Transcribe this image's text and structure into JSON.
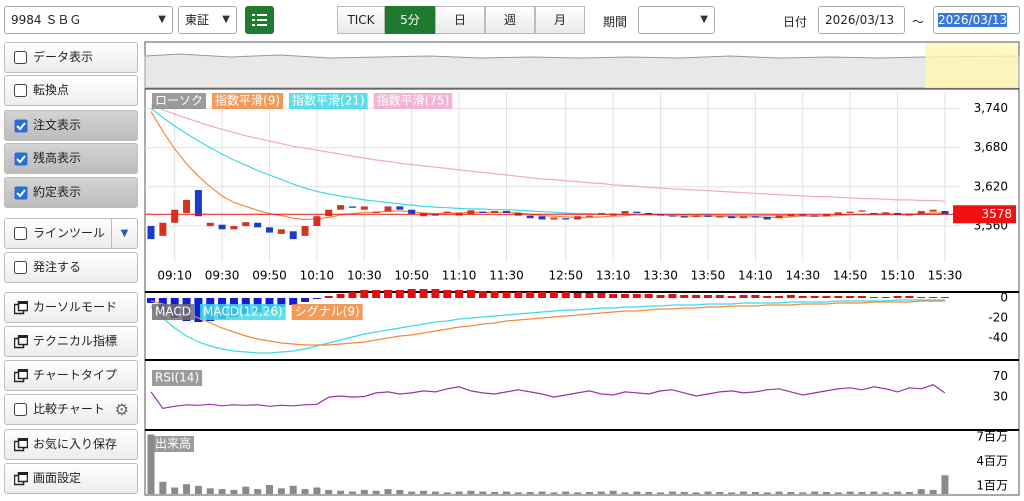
{
  "toolbar": {
    "symbol": "9984 ＳＢＧ",
    "market": "東証",
    "periods": [
      "TICK",
      "5分",
      "日",
      "週",
      "月"
    ],
    "active_period_index": 1,
    "period_label": "期間",
    "date_label": "日付",
    "date_from": "2026/03/13",
    "tilde": "～",
    "date_to": "2026/03/13"
  },
  "sidebar": {
    "items": [
      {
        "label": "データ表示",
        "checked": false
      },
      {
        "label": "転換点",
        "checked": false
      },
      {
        "label": "注文表示",
        "checked": true
      },
      {
        "label": "残高表示",
        "checked": true
      },
      {
        "label": "約定表示",
        "checked": true
      },
      {
        "label": "ラインツール",
        "checked": false
      },
      {
        "label": "発注する",
        "checked": false
      },
      {
        "label": "カーソルモード"
      },
      {
        "label": "テクニカル指標"
      },
      {
        "label": "チャートタイプ"
      },
      {
        "label": "比較チャート",
        "checked": false
      },
      {
        "label": "お気に入り保存"
      },
      {
        "label": "画面設定"
      }
    ]
  },
  "chart_data": [
    {
      "type": "candlestick",
      "categories": [
        null,
        null,
        "09:10",
        null,
        null,
        null,
        "09:30",
        null,
        null,
        null,
        "09:50",
        null,
        null,
        null,
        "10:10",
        null,
        null,
        null,
        "10:30",
        null,
        null,
        null,
        "10:50",
        null,
        null,
        null,
        "11:10",
        null,
        null,
        null,
        "11:30",
        null,
        null,
        null,
        null,
        "12:50",
        null,
        null,
        null,
        "13:10",
        null,
        null,
        null,
        "13:30",
        null,
        null,
        null,
        "13:50",
        null,
        null,
        null,
        "14:10",
        null,
        null,
        null,
        "14:30",
        null,
        null,
        null,
        "14:50",
        null,
        null,
        null,
        "15:10",
        null,
        null,
        null,
        "15:30"
      ],
      "candles": {
        "name": "ローソク",
        "up_color": "#d8321f",
        "down_color": "#1a3cc8",
        "open": [
          3560,
          3545,
          3565,
          3580,
          3615,
          3560,
          3562,
          3555,
          3560,
          3565,
          3558,
          3548,
          3552,
          3545,
          3560,
          3575,
          3585,
          3590,
          3585,
          3580,
          3582,
          3590,
          3585,
          3575,
          3578,
          3580,
          3576,
          3578,
          3582,
          3580,
          3583,
          3580,
          3576,
          3575,
          3570,
          3572,
          3570,
          3574,
          3578,
          3576,
          3579,
          3582,
          3580,
          3578,
          3576,
          3575,
          3574,
          3576,
          3573,
          3575,
          3572,
          3575,
          3574,
          3572,
          3575,
          3578,
          3576,
          3575,
          3577,
          3580,
          3582,
          3580,
          3578,
          3580,
          3576,
          3578,
          3582,
          3583
        ],
        "close": [
          3540,
          3565,
          3585,
          3600,
          3575,
          3565,
          3555,
          3560,
          3566,
          3558,
          3550,
          3555,
          3540,
          3560,
          3575,
          3585,
          3592,
          3588,
          3590,
          3582,
          3590,
          3585,
          3578,
          3580,
          3576,
          3582,
          3580,
          3584,
          3580,
          3583,
          3580,
          3576,
          3572,
          3570,
          3573,
          3570,
          3575,
          3576,
          3580,
          3579,
          3583,
          3580,
          3577,
          3576,
          3575,
          3573,
          3576,
          3574,
          3575,
          3572,
          3575,
          3573,
          3570,
          3576,
          3578,
          3576,
          3575,
          3578,
          3581,
          3582,
          3584,
          3579,
          3581,
          3577,
          3579,
          3583,
          3585,
          3578
        ]
      },
      "series": [
        {
          "name": "指数平滑(9)",
          "color": "#f08a3c",
          "values": [
            3735,
            3705,
            3678,
            3655,
            3636,
            3620,
            3606,
            3596,
            3590,
            3584,
            3579,
            3576,
            3572,
            3570,
            3571,
            3573,
            3577,
            3579,
            3581,
            3581,
            3583,
            3583,
            3582,
            3580,
            3579,
            3580,
            3580,
            3581,
            3581,
            3581,
            3581,
            3580,
            3578,
            3576,
            3575,
            3574,
            3573,
            3573,
            3574,
            3575,
            3576,
            3577,
            3577,
            3577,
            3576,
            3575,
            3575,
            3575,
            3575,
            3574,
            3574,
            3574,
            3573,
            3573,
            3574,
            3575,
            3575,
            3575,
            3576,
            3577,
            3578,
            3578,
            3579,
            3578,
            3578,
            3579,
            3580,
            3580
          ]
        },
        {
          "name": "指数平滑(21)",
          "color": "#3fd8e8",
          "values": [
            3740,
            3726,
            3713,
            3701,
            3690,
            3680,
            3670,
            3661,
            3653,
            3645,
            3638,
            3631,
            3624,
            3618,
            3613,
            3609,
            3606,
            3603,
            3600,
            3598,
            3596,
            3594,
            3592,
            3590,
            3589,
            3588,
            3587,
            3586,
            3586,
            3585,
            3585,
            3584,
            3583,
            3582,
            3581,
            3580,
            3579,
            3579,
            3578,
            3578,
            3578,
            3578,
            3578,
            3578,
            3577,
            3577,
            3577,
            3577,
            3576,
            3576,
            3576,
            3576,
            3576,
            3576,
            3576,
            3576,
            3576,
            3576,
            3576,
            3577,
            3577,
            3577,
            3577,
            3577,
            3577,
            3578,
            3578,
            3578
          ]
        },
        {
          "name": "指数平滑(75)",
          "color": "#f2a6cf",
          "values": [
            3745,
            3738,
            3731,
            3725,
            3719,
            3713,
            3708,
            3703,
            3698,
            3694,
            3690,
            3686,
            3682,
            3679,
            3676,
            3673,
            3670,
            3667,
            3664,
            3661,
            3659,
            3656,
            3654,
            3652,
            3650,
            3648,
            3646,
            3644,
            3642,
            3640,
            3638,
            3636,
            3634,
            3632,
            3631,
            3629,
            3628,
            3626,
            3625,
            3623,
            3622,
            3621,
            3619,
            3618,
            3617,
            3616,
            3615,
            3614,
            3613,
            3612,
            3611,
            3610,
            3609,
            3608,
            3607,
            3606,
            3605,
            3605,
            3604,
            3603,
            3602,
            3602,
            3601,
            3600,
            3600,
            3599,
            3599,
            3598
          ]
        }
      ],
      "last_price": 3578,
      "last_price_color": "#f01010",
      "ylim": [
        3505,
        3765
      ],
      "yticks": [
        {
          "value": 3560,
          "label": "3,560"
        },
        {
          "value": 3620,
          "label": "3,620"
        },
        {
          "value": 3680,
          "label": "3,680"
        },
        {
          "value": 3740,
          "label": "3,740"
        }
      ],
      "grid": true
    },
    {
      "type": "macd",
      "histogram": {
        "name": "MACD",
        "up_color": "#e01010",
        "down_color": "#1020d0",
        "values": [
          -5,
          -14,
          -20,
          -23,
          -24,
          -23,
          -21,
          -19,
          -16,
          -14,
          -12,
          -9,
          -7,
          -4,
          -1,
          2,
          4,
          6,
          8,
          8,
          8,
          8,
          9,
          9,
          9,
          8,
          8,
          8,
          7,
          7,
          6,
          6,
          6,
          6,
          6,
          6,
          5,
          5,
          5,
          4,
          4,
          4,
          4,
          3,
          4,
          3,
          3,
          3,
          3,
          2,
          3,
          3,
          2,
          2,
          3,
          2,
          2,
          2,
          2,
          2,
          2,
          1,
          1,
          2,
          2,
          1,
          1,
          1
        ]
      },
      "series": [
        {
          "name": "MACD(12,26)",
          "color": "#3fd8e8",
          "values": [
            -8,
            -20,
            -30,
            -38,
            -44,
            -48,
            -51,
            -53,
            -54,
            -55,
            -55,
            -54,
            -53,
            -51,
            -48,
            -45,
            -42,
            -39,
            -36,
            -34,
            -32,
            -30,
            -28,
            -26,
            -24,
            -23,
            -21,
            -20,
            -19,
            -18,
            -17,
            -16,
            -15,
            -14,
            -13,
            -12,
            -12,
            -11,
            -10,
            -10,
            -9,
            -9,
            -8,
            -8,
            -7,
            -7,
            -7,
            -6,
            -6,
            -6,
            -5,
            -5,
            -5,
            -5,
            -4,
            -4,
            -4,
            -4,
            -3,
            -3,
            -3,
            -3,
            -3,
            -2,
            -2,
            -2,
            -2,
            -2
          ]
        },
        {
          "name": "シグナル(9)",
          "color": "#f08a3c",
          "values": [
            -3,
            -6,
            -10,
            -15,
            -20,
            -25,
            -30,
            -34,
            -38,
            -41,
            -43,
            -45,
            -46,
            -47,
            -47,
            -47,
            -46,
            -45,
            -44,
            -42,
            -40,
            -38,
            -37,
            -35,
            -33,
            -31,
            -29,
            -28,
            -26,
            -25,
            -23,
            -22,
            -21,
            -20,
            -19,
            -18,
            -17,
            -16,
            -15,
            -14,
            -13,
            -13,
            -12,
            -11,
            -11,
            -10,
            -10,
            -9,
            -9,
            -8,
            -8,
            -8,
            -7,
            -7,
            -7,
            -6,
            -6,
            -6,
            -5,
            -5,
            -5,
            -4,
            -4,
            -4,
            -4,
            -3,
            -3,
            -3
          ]
        }
      ],
      "ylim": [
        -60,
        3
      ],
      "yticks": [
        0,
        -20,
        -40
      ]
    },
    {
      "type": "line",
      "series": [
        {
          "name": "RSI(14)",
          "color": "#9b2fae",
          "values": [
            40,
            8,
            12,
            15,
            14,
            16,
            13,
            15,
            14,
            15,
            12,
            14,
            13,
            15,
            16,
            30,
            32,
            30,
            31,
            38,
            40,
            36,
            38,
            42,
            40,
            46,
            50,
            42,
            38,
            36,
            40,
            44,
            40,
            36,
            30,
            34,
            38,
            42,
            36,
            34,
            40,
            38,
            36,
            42,
            44,
            38,
            32,
            36,
            40,
            42,
            38,
            40,
            44,
            46,
            40,
            34,
            38,
            42,
            46,
            48,
            44,
            50,
            46,
            40,
            48,
            46,
            54,
            38
          ]
        }
      ],
      "ylim": [
        -30,
        98
      ],
      "yticks": [
        30,
        70
      ]
    },
    {
      "type": "bar",
      "series": [
        {
          "name": "出来高",
          "color": "#8a8a8a",
          "values": [
            7300000,
            1500000,
            800000,
            1200000,
            1000000,
            700000,
            600000,
            500000,
            900000,
            600000,
            1100000,
            700000,
            1000000,
            600000,
            800000,
            500000,
            400000,
            300000,
            500000,
            400000,
            600000,
            500000,
            300000,
            400000,
            300000,
            200000,
            300000,
            400000,
            300000,
            250000,
            300000,
            200000,
            250000,
            300000,
            200000,
            300000,
            200000,
            250000,
            300000,
            400000,
            200000,
            300000,
            250000,
            200000,
            300000,
            250000,
            200000,
            300000,
            250000,
            200000,
            300000,
            250000,
            200000,
            300000,
            250000,
            200000,
            300000,
            250000,
            200000,
            300000,
            250000,
            300000,
            200000,
            300000,
            250000,
            600000,
            500000,
            2300000
          ]
        }
      ],
      "ylim": [
        0,
        7600000
      ],
      "yticks": [
        {
          "value": 1000000,
          "label": "1百万"
        },
        {
          "value": 4000000,
          "label": "4百万"
        },
        {
          "value": 7000000,
          "label": "7百万"
        }
      ]
    }
  ]
}
